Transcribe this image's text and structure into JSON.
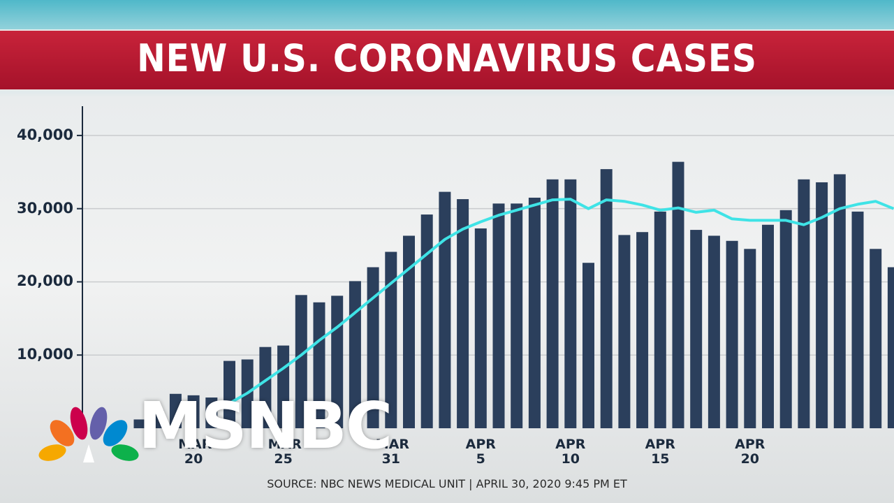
{
  "chart_data": {
    "type": "bar",
    "title": "NEW U.S. CORONAVIRUS CASES",
    "source": "SOURCE: NBC NEWS MEDICAL UNIT | APRIL 30, 2020 9:45 PM ET",
    "categories": [
      null,
      null,
      null,
      "MAR 20",
      null,
      null,
      null,
      null,
      "MAR 25",
      null,
      null,
      null,
      null,
      null,
      "MAR 31",
      null,
      null,
      null,
      null,
      "APR 5",
      null,
      null,
      null,
      null,
      "APR 10",
      null,
      null,
      null,
      null,
      "APR 15",
      null,
      null,
      null,
      null,
      "APR 20",
      null,
      null,
      null,
      null,
      null,
      null,
      null,
      null
    ],
    "series": [
      {
        "type": "bar",
        "color": "#2b3f5c",
        "values": [
          1200,
          2500,
          4700,
          4500,
          4200,
          9200,
          9400,
          11100,
          11300,
          18200,
          17200,
          18100,
          20100,
          22000,
          24100,
          26300,
          29200,
          32300,
          31300,
          27300,
          30700,
          30700,
          31500,
          34000,
          34000,
          22600,
          35400,
          26400,
          26800,
          29600,
          36400,
          27100,
          26300,
          25600,
          24500,
          27800,
          29800,
          34000,
          33600,
          34700,
          29600,
          24500,
          22000
        ]
      },
      {
        "type": "line",
        "color": "#3fe3e6",
        "values": [
          null,
          null,
          null,
          null,
          null,
          3400,
          4800,
          6500,
          8200,
          10000,
          12000,
          13800,
          15800,
          17800,
          19800,
          21800,
          23800,
          25800,
          27200,
          28200,
          29100,
          29800,
          30500,
          31200,
          31300,
          30000,
          31200,
          31000,
          30500,
          29800,
          30100,
          29500,
          29800,
          28600,
          28400,
          28400,
          28400,
          27800,
          28800,
          30000,
          30600,
          31000,
          30000
        ]
      }
    ],
    "ylim": [
      0,
      44000
    ],
    "yticks": [
      {
        "value": 10000,
        "label": "10,000"
      },
      {
        "value": 20000,
        "label": "20,000"
      },
      {
        "value": 30000,
        "label": "30,000"
      },
      {
        "value": 40000,
        "label": "40,000"
      }
    ],
    "grid": true
  },
  "logo": "MSNBC"
}
